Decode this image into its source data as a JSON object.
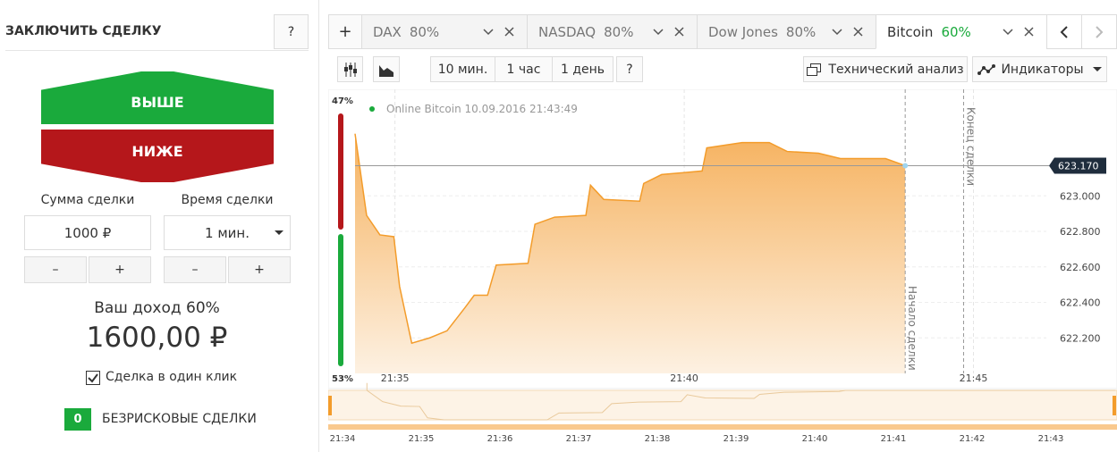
{
  "panel": {
    "title": "ЗАКЛЮЧИТЬ СДЕЛКУ",
    "help": "?",
    "up": "ВЫШЕ",
    "down": "НИЖЕ",
    "amount_label": "Сумма сделки",
    "amount": "1000 ₽",
    "time_label": "Время сделки",
    "time": "1 мин.",
    "minus": "–",
    "plus": "+",
    "income_label": "Ваш доход 60%",
    "income": "1600,00 ₽",
    "one_click": "Сделка в один клик",
    "riskless_count": "0",
    "riskless": "БЕЗРИСКОВЫЕ СДЕЛКИ"
  },
  "tabs": {
    "add": "+",
    "items": [
      {
        "name": "DAX",
        "payout": "80%"
      },
      {
        "name": "NASDAQ",
        "payout": "80%"
      },
      {
        "name": "Dow Jones",
        "payout": "80%"
      },
      {
        "name": "Bitcoin",
        "payout": "60%"
      }
    ]
  },
  "toolbar": {
    "periods": [
      "10 мин.",
      "1 час",
      "1 день"
    ],
    "help": "?",
    "analysis": "Технический анализ",
    "indicators": "Индикаторы"
  },
  "chart_data": {
    "type": "area",
    "legend": "Online Bitcoin 10.09.2016 21:43:49",
    "color": "#f39c2b",
    "x": [
      -0.69,
      -0.49,
      -0.26,
      -0.02,
      0.08,
      0.29,
      0.6,
      0.9,
      1.21,
      1.37,
      1.6,
      1.75,
      2.3,
      2.42,
      2.76,
      3.3,
      3.38,
      3.61,
      4.23,
      4.3,
      4.61,
      5.31,
      5.39,
      6.0,
      6.47,
      6.78,
      7.32,
      7.7,
      8.48,
      8.82
    ],
    "values": [
      623.35,
      622.89,
      622.78,
      622.77,
      622.49,
      622.17,
      622.2,
      622.24,
      622.37,
      622.44,
      622.44,
      622.61,
      622.62,
      622.84,
      622.88,
      622.89,
      623.06,
      622.98,
      622.97,
      623.07,
      623.12,
      623.14,
      623.27,
      623.3,
      623.3,
      623.25,
      623.24,
      623.21,
      623.21,
      623.17
    ],
    "xlim": [
      -0.69,
      11.26
    ],
    "ylim": [
      622.0,
      623.6
    ],
    "xticks": [
      {
        "value": 0,
        "label": "21:35"
      },
      {
        "value": 5,
        "label": "21:40"
      },
      {
        "value": 10,
        "label": "21:45"
      }
    ],
    "yticks": [
      {
        "value": 622.2,
        "label": "622.200"
      },
      {
        "value": 622.4,
        "label": "622.400"
      },
      {
        "value": 622.6,
        "label": "622.600"
      },
      {
        "value": 622.8,
        "label": "622.800"
      },
      {
        "value": 623.0,
        "label": "623.000"
      }
    ],
    "current": {
      "value": 623.17,
      "label": "623.170"
    },
    "annotations": [
      {
        "x": 8.82,
        "text": "Начало сделки"
      },
      {
        "x": 9.83,
        "text": "Конец сделки"
      }
    ],
    "up_share": "47%",
    "down_share": "53%",
    "navigator_ticks": [
      "21:34",
      "21:35",
      "21:36",
      "21:37",
      "21:38",
      "21:39",
      "21:40",
      "21:41",
      "21:42",
      "21:43"
    ]
  }
}
